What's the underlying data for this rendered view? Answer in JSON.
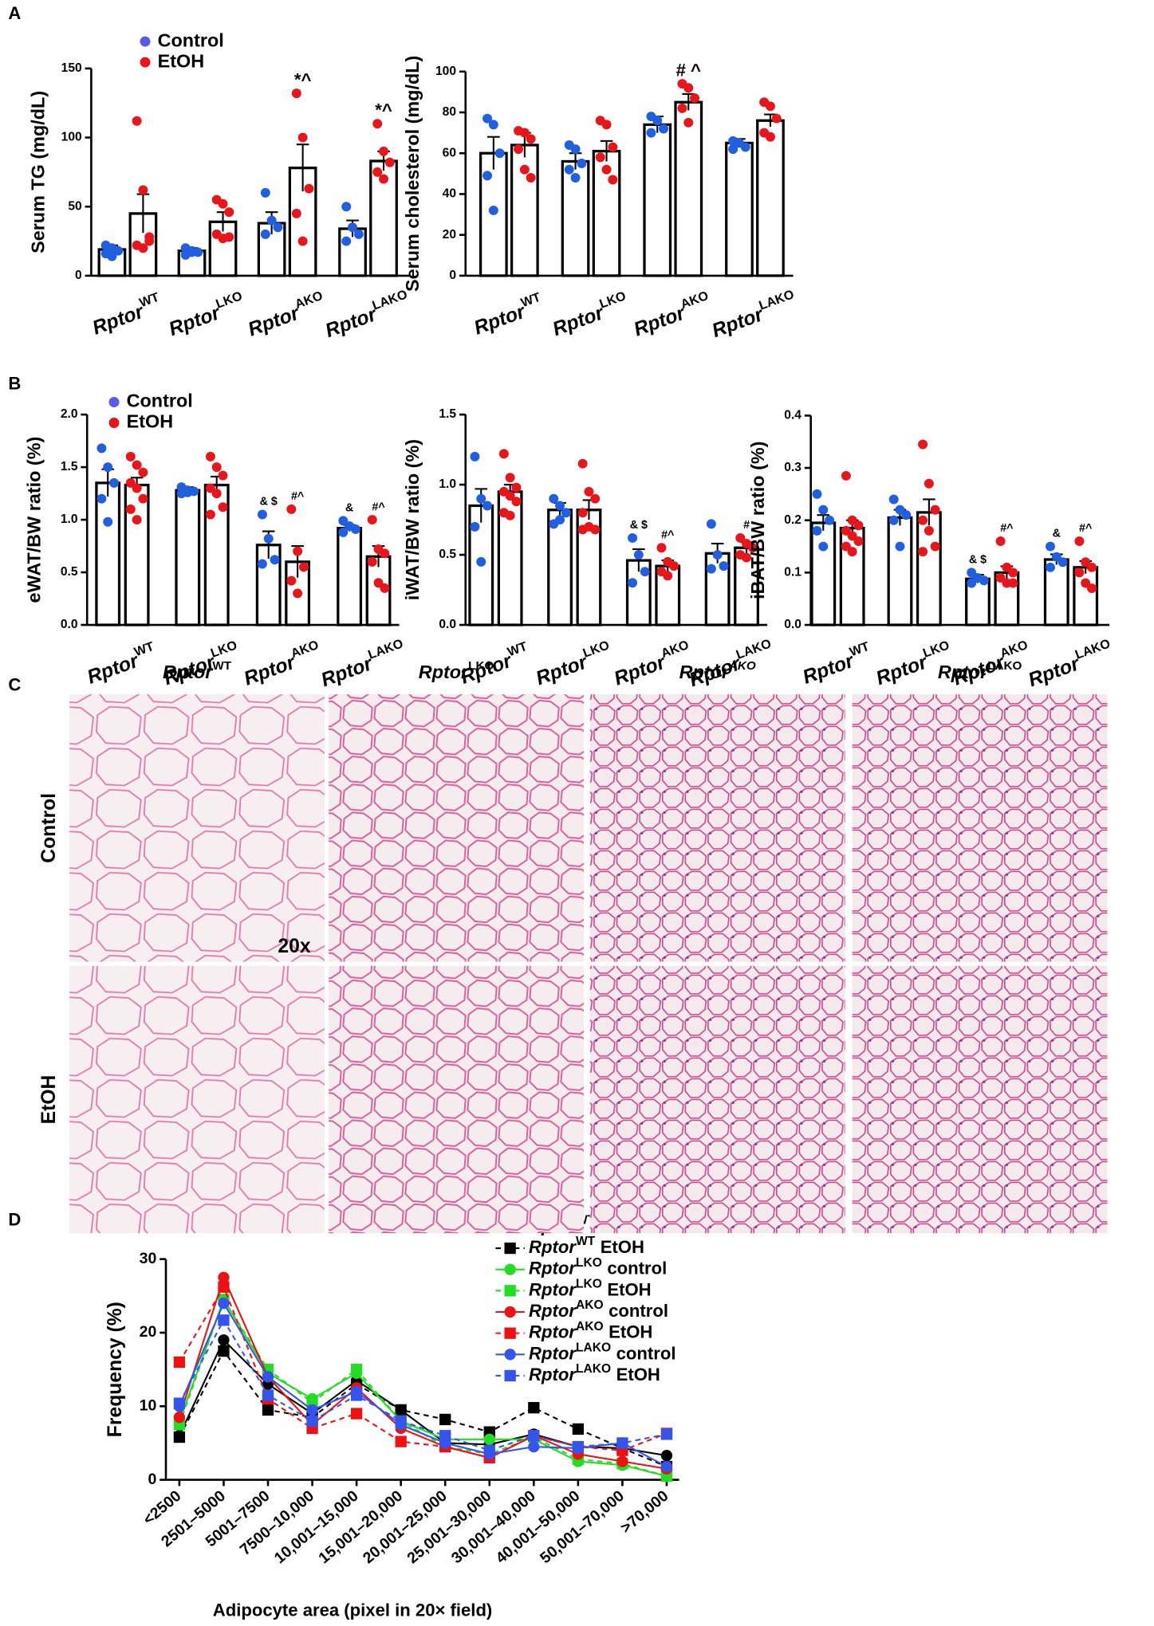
{
  "panels": [
    "A",
    "B",
    "C",
    "D"
  ],
  "histology": {
    "columns": [
      {
        "name": "Rptor",
        "sup": "WT"
      },
      {
        "name": "Rptor",
        "sup": "LKO"
      },
      {
        "name": "Rptor",
        "sup": "AKO"
      },
      {
        "name": "Rptor",
        "sup": "LAKO"
      }
    ],
    "rows": [
      "Control",
      "EtOH"
    ],
    "magnification": "20x"
  },
  "chart_data": [
    {
      "type": "bar",
      "ylabel": "Serum TG (mg/dL)",
      "legend": true,
      "categories": [
        {
          "name": "Rptor",
          "sup": "WT"
        },
        {
          "name": "Rptor",
          "sup": "LKO"
        },
        {
          "name": "Rptor",
          "sup": "AKO"
        },
        {
          "name": "Rptor",
          "sup": "LAKO"
        }
      ],
      "ylim": [
        0,
        150
      ],
      "yticks": [
        0,
        50,
        100,
        150
      ],
      "series": [
        {
          "name": "Control",
          "color": "#1f5fe0",
          "values": [
            19,
            18,
            38,
            34
          ],
          "errors": [
            3,
            2,
            8,
            6
          ],
          "labels": [
            null,
            null,
            null,
            null
          ],
          "points": [
            [
              22,
              20,
              18,
              16,
              14
            ],
            [
              20,
              18,
              17,
              15,
              17
            ],
            [
              60,
              40,
              35,
              30
            ],
            [
              50,
              35,
              30,
              25
            ]
          ]
        },
        {
          "name": "EtOH",
          "color": "#e8161b",
          "values": [
            45,
            39,
            78,
            83
          ],
          "errors": [
            14,
            7,
            17,
            7
          ],
          "labels": [
            null,
            null,
            "*^",
            "*^"
          ],
          "points": [
            [
              112,
              62,
              28,
              22,
              20,
              25
            ],
            [
              55,
              52,
              46,
              30,
              27,
              28
            ],
            [
              132,
              100,
              63,
              45,
              25
            ],
            [
              110,
              90,
              82,
              75,
              70
            ]
          ]
        }
      ]
    },
    {
      "type": "bar",
      "ylabel": "Serum cholesterol (mg/dL)",
      "legend": false,
      "categories": [
        {
          "name": "Rptor",
          "sup": "WT"
        },
        {
          "name": "Rptor",
          "sup": "LKO"
        },
        {
          "name": "Rptor",
          "sup": "AKO"
        },
        {
          "name": "Rptor",
          "sup": "LAKO"
        }
      ],
      "ylim": [
        0,
        100
      ],
      "yticks": [
        0,
        20,
        40,
        60,
        80,
        100
      ],
      "series": [
        {
          "color": "#1f5fe0",
          "values": [
            60,
            56,
            74,
            65
          ],
          "errors": [
            8,
            4,
            4,
            2
          ],
          "labels": [
            null,
            null,
            null,
            null
          ],
          "points": [
            [
              77,
              74,
              60,
              49,
              32
            ],
            [
              64,
              62,
              55,
              52,
              48
            ],
            [
              78,
              76,
              72,
              70
            ],
            [
              66,
              65,
              63,
              62
            ]
          ]
        },
        {
          "color": "#e8161b",
          "values": [
            64,
            61,
            85,
            76
          ],
          "errors": [
            6,
            5,
            4,
            3
          ],
          "labels": [
            null,
            null,
            "# ^",
            null
          ],
          "points": [
            [
              71,
              70,
              67,
              62,
              52,
              48
            ],
            [
              76,
              74,
              63,
              58,
              52,
              47
            ],
            [
              94,
              92,
              87,
              82,
              75
            ],
            [
              85,
              83,
              77,
              70,
              68
            ]
          ]
        }
      ]
    },
    {
      "type": "bar",
      "ylabel": "eWAT/BW ratio (%)",
      "legend": true,
      "categories": [
        {
          "name": "Rptor",
          "sup": "WT"
        },
        {
          "name": "Rptor",
          "sup": "LKO"
        },
        {
          "name": "Rptor",
          "sup": "AKO"
        },
        {
          "name": "Rptor",
          "sup": "LAKO"
        }
      ],
      "ylim": [
        0,
        2
      ],
      "yticks": [
        {
          "value": 0,
          "label": "0.0"
        },
        0.5,
        {
          "value": 1,
          "label": "1.0"
        },
        1.5,
        {
          "value": 2,
          "label": "2.0"
        }
      ],
      "series": [
        {
          "name": "Control",
          "color": "#1f5fe0",
          "values": [
            1.35,
            1.28,
            0.76,
            0.92
          ],
          "errors": [
            0.13,
            0.03,
            0.13,
            0.03
          ],
          "labels": [
            null,
            null,
            "& $",
            "&"
          ],
          "points": [
            [
              1.68,
              1.5,
              1.35,
              1.2,
              0.98
            ],
            [
              1.31,
              1.28,
              1.27,
              1.25,
              1.26
            ],
            [
              1.05,
              0.82,
              0.62,
              0.58
            ],
            [
              0.99,
              0.94,
              0.91,
              0.88
            ]
          ]
        },
        {
          "name": "EtOH",
          "color": "#e8161b",
          "values": [
            1.33,
            1.33,
            0.6,
            0.65
          ],
          "errors": [
            0.07,
            0.08,
            0.15,
            0.1
          ],
          "labels": [
            null,
            null,
            "#^",
            "#^"
          ],
          "points": [
            [
              1.6,
              1.52,
              1.45,
              1.35,
              1.3,
              1.2,
              1.1,
              1.0
            ],
            [
              1.6,
              1.5,
              1.42,
              1.3,
              1.25,
              1.12,
              1.05
            ],
            [
              1.1,
              0.7,
              0.55,
              0.42,
              0.3
            ],
            [
              1.0,
              0.72,
              0.68,
              0.6,
              0.4,
              0.35
            ]
          ]
        }
      ]
    },
    {
      "type": "bar",
      "ylabel": "iWAT/BW ratio (%)",
      "legend": false,
      "categories": [
        {
          "name": "Rptor",
          "sup": "WT"
        },
        {
          "name": "Rptor",
          "sup": "LKO"
        },
        {
          "name": "Rptor",
          "sup": "AKO"
        },
        {
          "name": "Rptor",
          "sup": "LAKO"
        }
      ],
      "ylim": [
        0,
        1.5
      ],
      "yticks": [
        {
          "value": 0,
          "label": "0.0"
        },
        0.5,
        {
          "value": 1,
          "label": "1.0"
        },
        1.5
      ],
      "series": [
        {
          "color": "#1f5fe0",
          "values": [
            0.85,
            0.82,
            0.46,
            0.51
          ],
          "errors": [
            0.12,
            0.05,
            0.08,
            0.07
          ],
          "labels": [
            null,
            null,
            "& $",
            null
          ],
          "points": [
            [
              1.2,
              0.9,
              0.85,
              0.7,
              0.45
            ],
            [
              0.9,
              0.85,
              0.8,
              0.72,
              0.75
            ],
            [
              0.62,
              0.5,
              0.38,
              0.3
            ],
            [
              0.72,
              0.5,
              0.42,
              0.4
            ]
          ]
        },
        {
          "color": "#e8161b",
          "values": [
            0.95,
            0.82,
            0.42,
            0.55
          ],
          "errors": [
            0.05,
            0.07,
            0.04,
            0.04
          ],
          "labels": [
            null,
            null,
            "#^",
            "#"
          ],
          "points": [
            [
              1.22,
              1.05,
              0.98,
              0.95,
              0.92,
              0.88,
              0.8,
              0.78
            ],
            [
              1.15,
              0.95,
              0.9,
              0.8,
              0.7,
              0.68,
              0.68
            ],
            [
              0.55,
              0.45,
              0.42,
              0.38,
              0.35
            ],
            [
              0.62,
              0.58,
              0.55,
              0.5,
              0.48
            ]
          ]
        }
      ]
    },
    {
      "type": "bar",
      "ylabel": "iBAT/BW ratio (%)",
      "legend": false,
      "categories": [
        {
          "name": "Rptor",
          "sup": "WT"
        },
        {
          "name": "Rptor",
          "sup": "LKO"
        },
        {
          "name": "Rptor",
          "sup": "AKO"
        },
        {
          "name": "Rptor",
          "sup": "LAKO"
        }
      ],
      "ylim": [
        0,
        0.4
      ],
      "yticks": [
        {
          "value": 0,
          "label": "0.0"
        },
        0.1,
        0.2,
        0.3,
        0.4
      ],
      "series": [
        {
          "color": "#1f5fe0",
          "values": [
            0.195,
            0.205,
            0.088,
            0.125
          ],
          "errors": [
            0.015,
            0.015,
            0.008,
            0.01
          ],
          "labels": [
            null,
            null,
            "& $",
            "&"
          ],
          "points": [
            [
              0.25,
              0.22,
              0.2,
              0.18,
              0.15
            ],
            [
              0.24,
              0.22,
              0.21,
              0.2,
              0.15
            ],
            [
              0.1,
              0.09,
              0.085,
              0.08
            ],
            [
              0.15,
              0.13,
              0.12,
              0.11
            ]
          ]
        },
        {
          "color": "#e8161b",
          "values": [
            0.185,
            0.215,
            0.1,
            0.11
          ],
          "errors": [
            0.015,
            0.025,
            0.012,
            0.012
          ],
          "labels": [
            null,
            null,
            "#^",
            "#^"
          ],
          "points": [
            [
              0.285,
              0.2,
              0.19,
              0.18,
              0.17,
              0.16,
              0.15,
              0.14
            ],
            [
              0.345,
              0.27,
              0.22,
              0.2,
              0.18,
              0.15,
              0.14
            ],
            [
              0.16,
              0.11,
              0.1,
              0.09,
              0.08,
              0.08
            ],
            [
              0.16,
              0.12,
              0.11,
              0.1,
              0.08,
              0.07
            ]
          ]
        }
      ]
    },
    {
      "type": "line",
      "ylabel": "Frequency (%)",
      "xlabel": "Adipocyte area (pixel in 20× field)",
      "categories": [
        "<2500",
        "2501–5000",
        "5001–7500",
        "7500–10,000",
        "10,001–15,000",
        "15,001–20,000",
        "20,001–25,000",
        "25,001–30,000",
        "30,001–40,000",
        "40,001–50,000",
        "50,001–70,000",
        ">70,000"
      ],
      "ylim": [
        0,
        30
      ],
      "yticks": [
        0,
        10,
        20,
        30
      ],
      "series": [
        {
          "name": "Rptor",
          "sup": "WT",
          "group": "control",
          "color": "#000000",
          "line_style": "solid",
          "marker": "circle",
          "values": [
            6,
            19,
            13,
            9,
            13.5,
            9.5,
            5,
            4.8,
            6.2,
            4.5,
            4.3,
            3.3
          ]
        },
        {
          "name": "Rptor",
          "sup": "WT",
          "group": "EtOH",
          "color": "#000000",
          "line_style": "dashed",
          "marker": "square",
          "values": [
            5.8,
            17.5,
            9.5,
            8.5,
            13,
            9.5,
            8.2,
            6.5,
            9.8,
            6.9,
            4.3,
            1.8
          ]
        },
        {
          "name": "Rptor",
          "sup": "LKO",
          "group": "control",
          "color": "#22dd22",
          "line_style": "solid",
          "marker": "circle",
          "values": [
            8,
            24.5,
            14.5,
            11,
            14.5,
            8,
            5.5,
            5.5,
            5.5,
            2.5,
            2,
            0.5
          ]
        },
        {
          "name": "Rptor",
          "sup": "LKO",
          "group": "EtOH",
          "color": "#22dd22",
          "line_style": "dashed",
          "marker": "square",
          "values": [
            7.5,
            24.5,
            15,
            10.5,
            15,
            8,
            4.5,
            3.5,
            5.8,
            2.8,
            2.2,
            0.5
          ]
        },
        {
          "name": "Rptor",
          "sup": "AKO",
          "group": "control",
          "color": "#ee1111",
          "line_style": "solid",
          "marker": "circle",
          "values": [
            8.5,
            27.5,
            14,
            7.5,
            12.5,
            7,
            4.5,
            3,
            6,
            3.5,
            2.5,
            1.5
          ]
        },
        {
          "name": "Rptor",
          "sup": "AKO",
          "group": "EtOH",
          "color": "#ee1111",
          "line_style": "dashed",
          "marker": "square",
          "values": [
            16,
            26.2,
            11,
            7,
            9,
            5.2,
            4.5,
            3,
            6,
            4.5,
            4,
            6.3
          ]
        },
        {
          "name": "Rptor",
          "sup": "LAKO",
          "group": "control",
          "color": "#3355ee",
          "line_style": "solid",
          "marker": "circle",
          "values": [
            10,
            24,
            14,
            9.5,
            12,
            7.5,
            5,
            3.5,
            4.5,
            4.3,
            5,
            1.8
          ]
        },
        {
          "name": "Rptor",
          "sup": "LAKO",
          "group": "EtOH",
          "color": "#3355ee",
          "line_style": "dashed",
          "marker": "square",
          "values": [
            10.4,
            21.7,
            11.5,
            8,
            11.5,
            8,
            6,
            4,
            6,
            4.5,
            5,
            6.2
          ]
        }
      ]
    }
  ]
}
